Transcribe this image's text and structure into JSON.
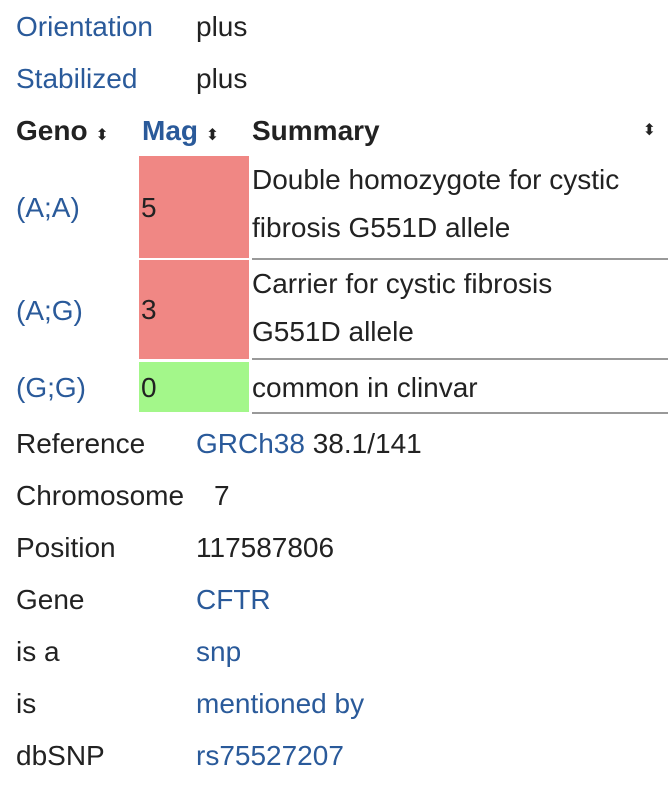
{
  "properties": [
    {
      "label": "Orientation",
      "value": "plus"
    },
    {
      "label": "Stabilized",
      "value": "plus"
    }
  ],
  "table": {
    "headers": {
      "geno": "Geno",
      "mag": "Mag",
      "summary": "Summary",
      "sort_icon": "sort-arrows"
    },
    "rows": [
      {
        "geno": "(A;A)",
        "mag": "5",
        "summary": "Double homozygote for cystic fibrosis G551D allele",
        "color": "#f08784"
      },
      {
        "geno": "(A;G)",
        "mag": "3",
        "summary": "Carrier for cystic fibrosis G551D allele",
        "color": "#f08784"
      },
      {
        "geno": "(G;G)",
        "mag": "0",
        "summary": "common in clinvar",
        "color": "#a3f78a"
      }
    ]
  },
  "info": [
    {
      "label": "Reference",
      "link": "GRCh38",
      "value": " 38.1/141"
    },
    {
      "label": "Chromosome",
      "value": "7"
    },
    {
      "label": "Position",
      "value": "117587806"
    },
    {
      "label": "Gene",
      "link": "CFTR"
    },
    {
      "label": "is a",
      "link": "snp"
    },
    {
      "label": "is",
      "link": "mentioned by"
    },
    {
      "label": "dbSNP",
      "link": "rs75527207"
    }
  ]
}
